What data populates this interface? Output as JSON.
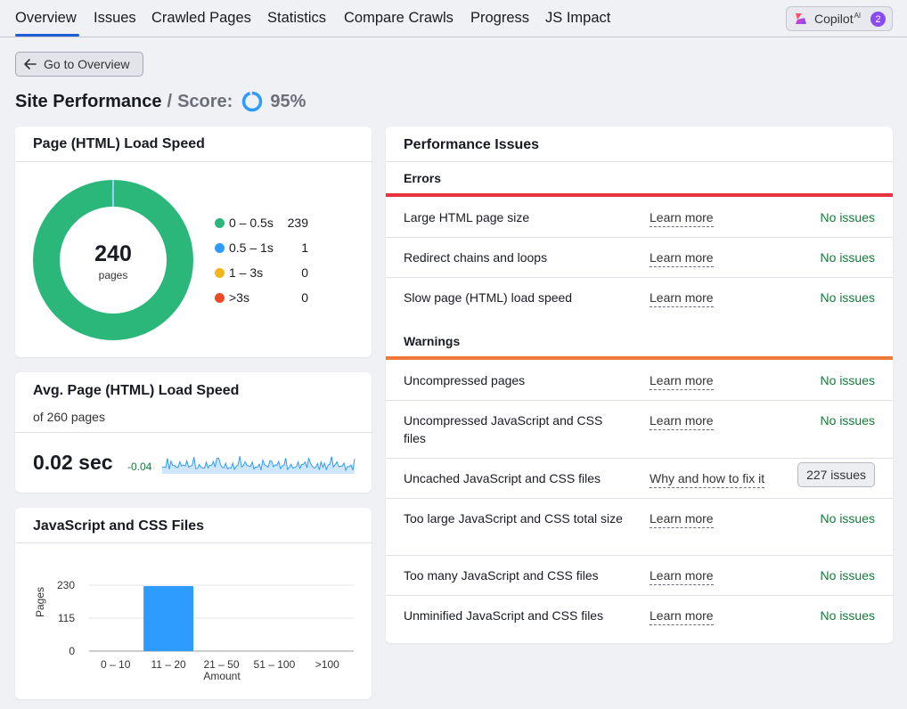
{
  "tabs": [
    {
      "label": "Overview",
      "active": true
    },
    {
      "label": "Issues"
    },
    {
      "label": "Crawled Pages"
    },
    {
      "label": "Statistics"
    },
    {
      "label": "Compare Crawls"
    },
    {
      "label": "Progress"
    },
    {
      "label": "JS Impact"
    }
  ],
  "copilot": {
    "label": "Copilot",
    "sup": "AI",
    "count": "2"
  },
  "back_button": {
    "label": "Go to Overview"
  },
  "title": {
    "main": "Site Performance",
    "sep": "/",
    "score_label": "Score:",
    "score": "95%",
    "score_fraction": 0.95
  },
  "load_speed": {
    "title": "Page (HTML) Load Speed",
    "total": "240",
    "total_label": "pages",
    "legend": [
      {
        "label": "0 – 0.5s",
        "value": "239",
        "color": "#2bb77a"
      },
      {
        "label": "0.5 – 1s",
        "value": "1",
        "color": "#2e9bff"
      },
      {
        "label": "1 – 3s",
        "value": "0",
        "color": "#f2b51c"
      },
      {
        "label": ">3s",
        "value": "0",
        "color": "#ed4b26"
      }
    ]
  },
  "avg_speed": {
    "title": "Avg. Page (HTML) Load Speed",
    "subtitle": "of 260 pages",
    "value": "0.02 sec",
    "delta": "-0.04",
    "spark_color": "#2e9bff"
  },
  "js_css": {
    "title": "JavaScript and CSS Files"
  },
  "chart_data": {
    "type": "bar",
    "title": "JavaScript and CSS Files",
    "categories": [
      "0 – 10",
      "11 – 20",
      "21 – 50",
      "51 – 100",
      ">100"
    ],
    "values": [
      0,
      227,
      0,
      0,
      0
    ],
    "xlabel": "Amount",
    "ylabel": "Pages",
    "yticks": [
      "0",
      "115",
      "230"
    ],
    "ylim": [
      0,
      230
    ],
    "bar_color": "#2e9bff"
  },
  "performance": {
    "title": "Performance Issues",
    "errors_label": "Errors",
    "warnings_label": "Warnings",
    "error_color": "#e8333e",
    "warning_color": "#ee7a3a",
    "errors": [
      {
        "name": "Large HTML page size",
        "link": "Learn more",
        "status": "No issues"
      },
      {
        "name": "Redirect chains and loops",
        "link": "Learn more",
        "status": "No issues"
      },
      {
        "name": "Slow page (HTML) load speed",
        "link": "Learn more",
        "status": "No issues"
      }
    ],
    "warnings": [
      {
        "name": "Uncompressed pages",
        "link": "Learn more",
        "status": "No issues"
      },
      {
        "name": "Uncompressed JavaScript and CSS files",
        "link": "Learn more",
        "status": "No issues"
      },
      {
        "name": "Uncached JavaScript and CSS files",
        "link": "Why and how to fix it",
        "badge": "227 issues"
      },
      {
        "name": "Too large JavaScript and CSS total size",
        "link": "Learn more",
        "status": "No issues"
      },
      {
        "name": "Too many JavaScript and CSS files",
        "link": "Learn more",
        "status": "No issues"
      },
      {
        "name": "Unminified JavaScript and CSS files",
        "link": "Learn more",
        "status": "No issues"
      }
    ]
  }
}
